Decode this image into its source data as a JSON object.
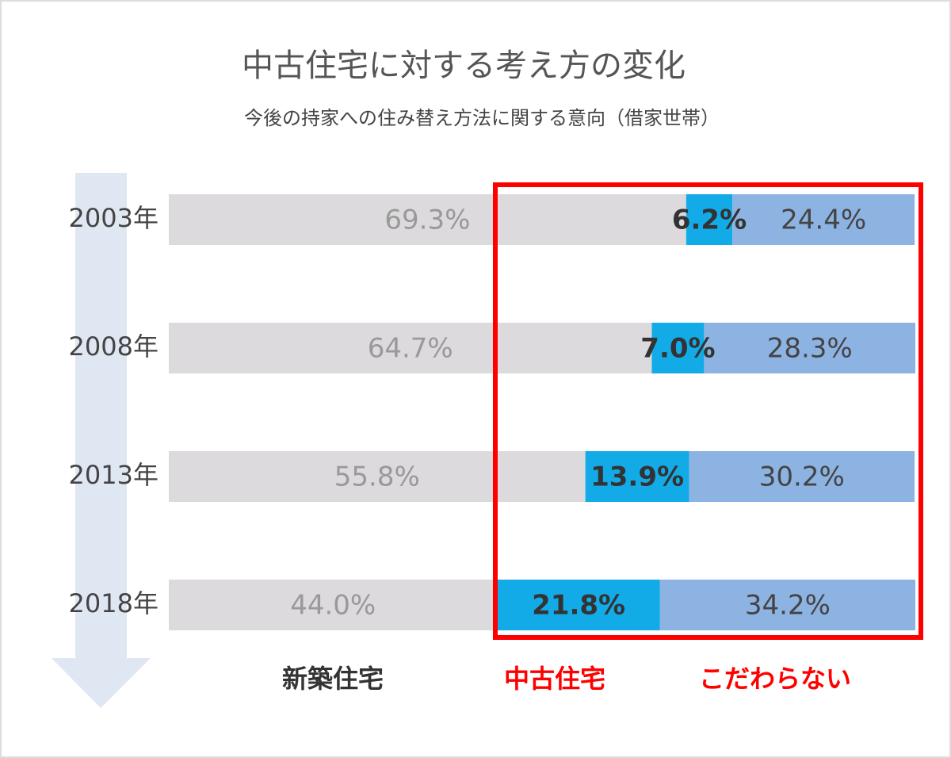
{
  "chart_data": {
    "type": "stacked-barh",
    "title": "中古住宅に対する考え方の変化",
    "subtitle": "今後の持家への住み替え方法に関する意向（借家世帯）",
    "categories": [
      "2003年",
      "2008年",
      "2013年",
      "2018年"
    ],
    "xlim": [
      0,
      100
    ],
    "series": [
      {
        "name": "新築住宅",
        "color": "#dcdadc",
        "values": [
          69.3,
          64.7,
          55.8,
          44.0
        ],
        "value_labels": [
          "69.3%",
          "64.7%",
          "55.8%",
          "44.0%"
        ]
      },
      {
        "name": "中古住宅",
        "color": "#12abe8",
        "values": [
          6.2,
          7.0,
          13.9,
          21.8
        ],
        "value_labels": [
          "6.2%",
          "7.0%",
          "13.9%",
          "21.8%"
        ]
      },
      {
        "name": "こだわらない",
        "color": "#8db3e3",
        "values": [
          24.4,
          28.3,
          30.2,
          34.2
        ],
        "value_labels": [
          "24.4%",
          "28.3%",
          "30.2%",
          "34.2%"
        ]
      }
    ]
  }
}
